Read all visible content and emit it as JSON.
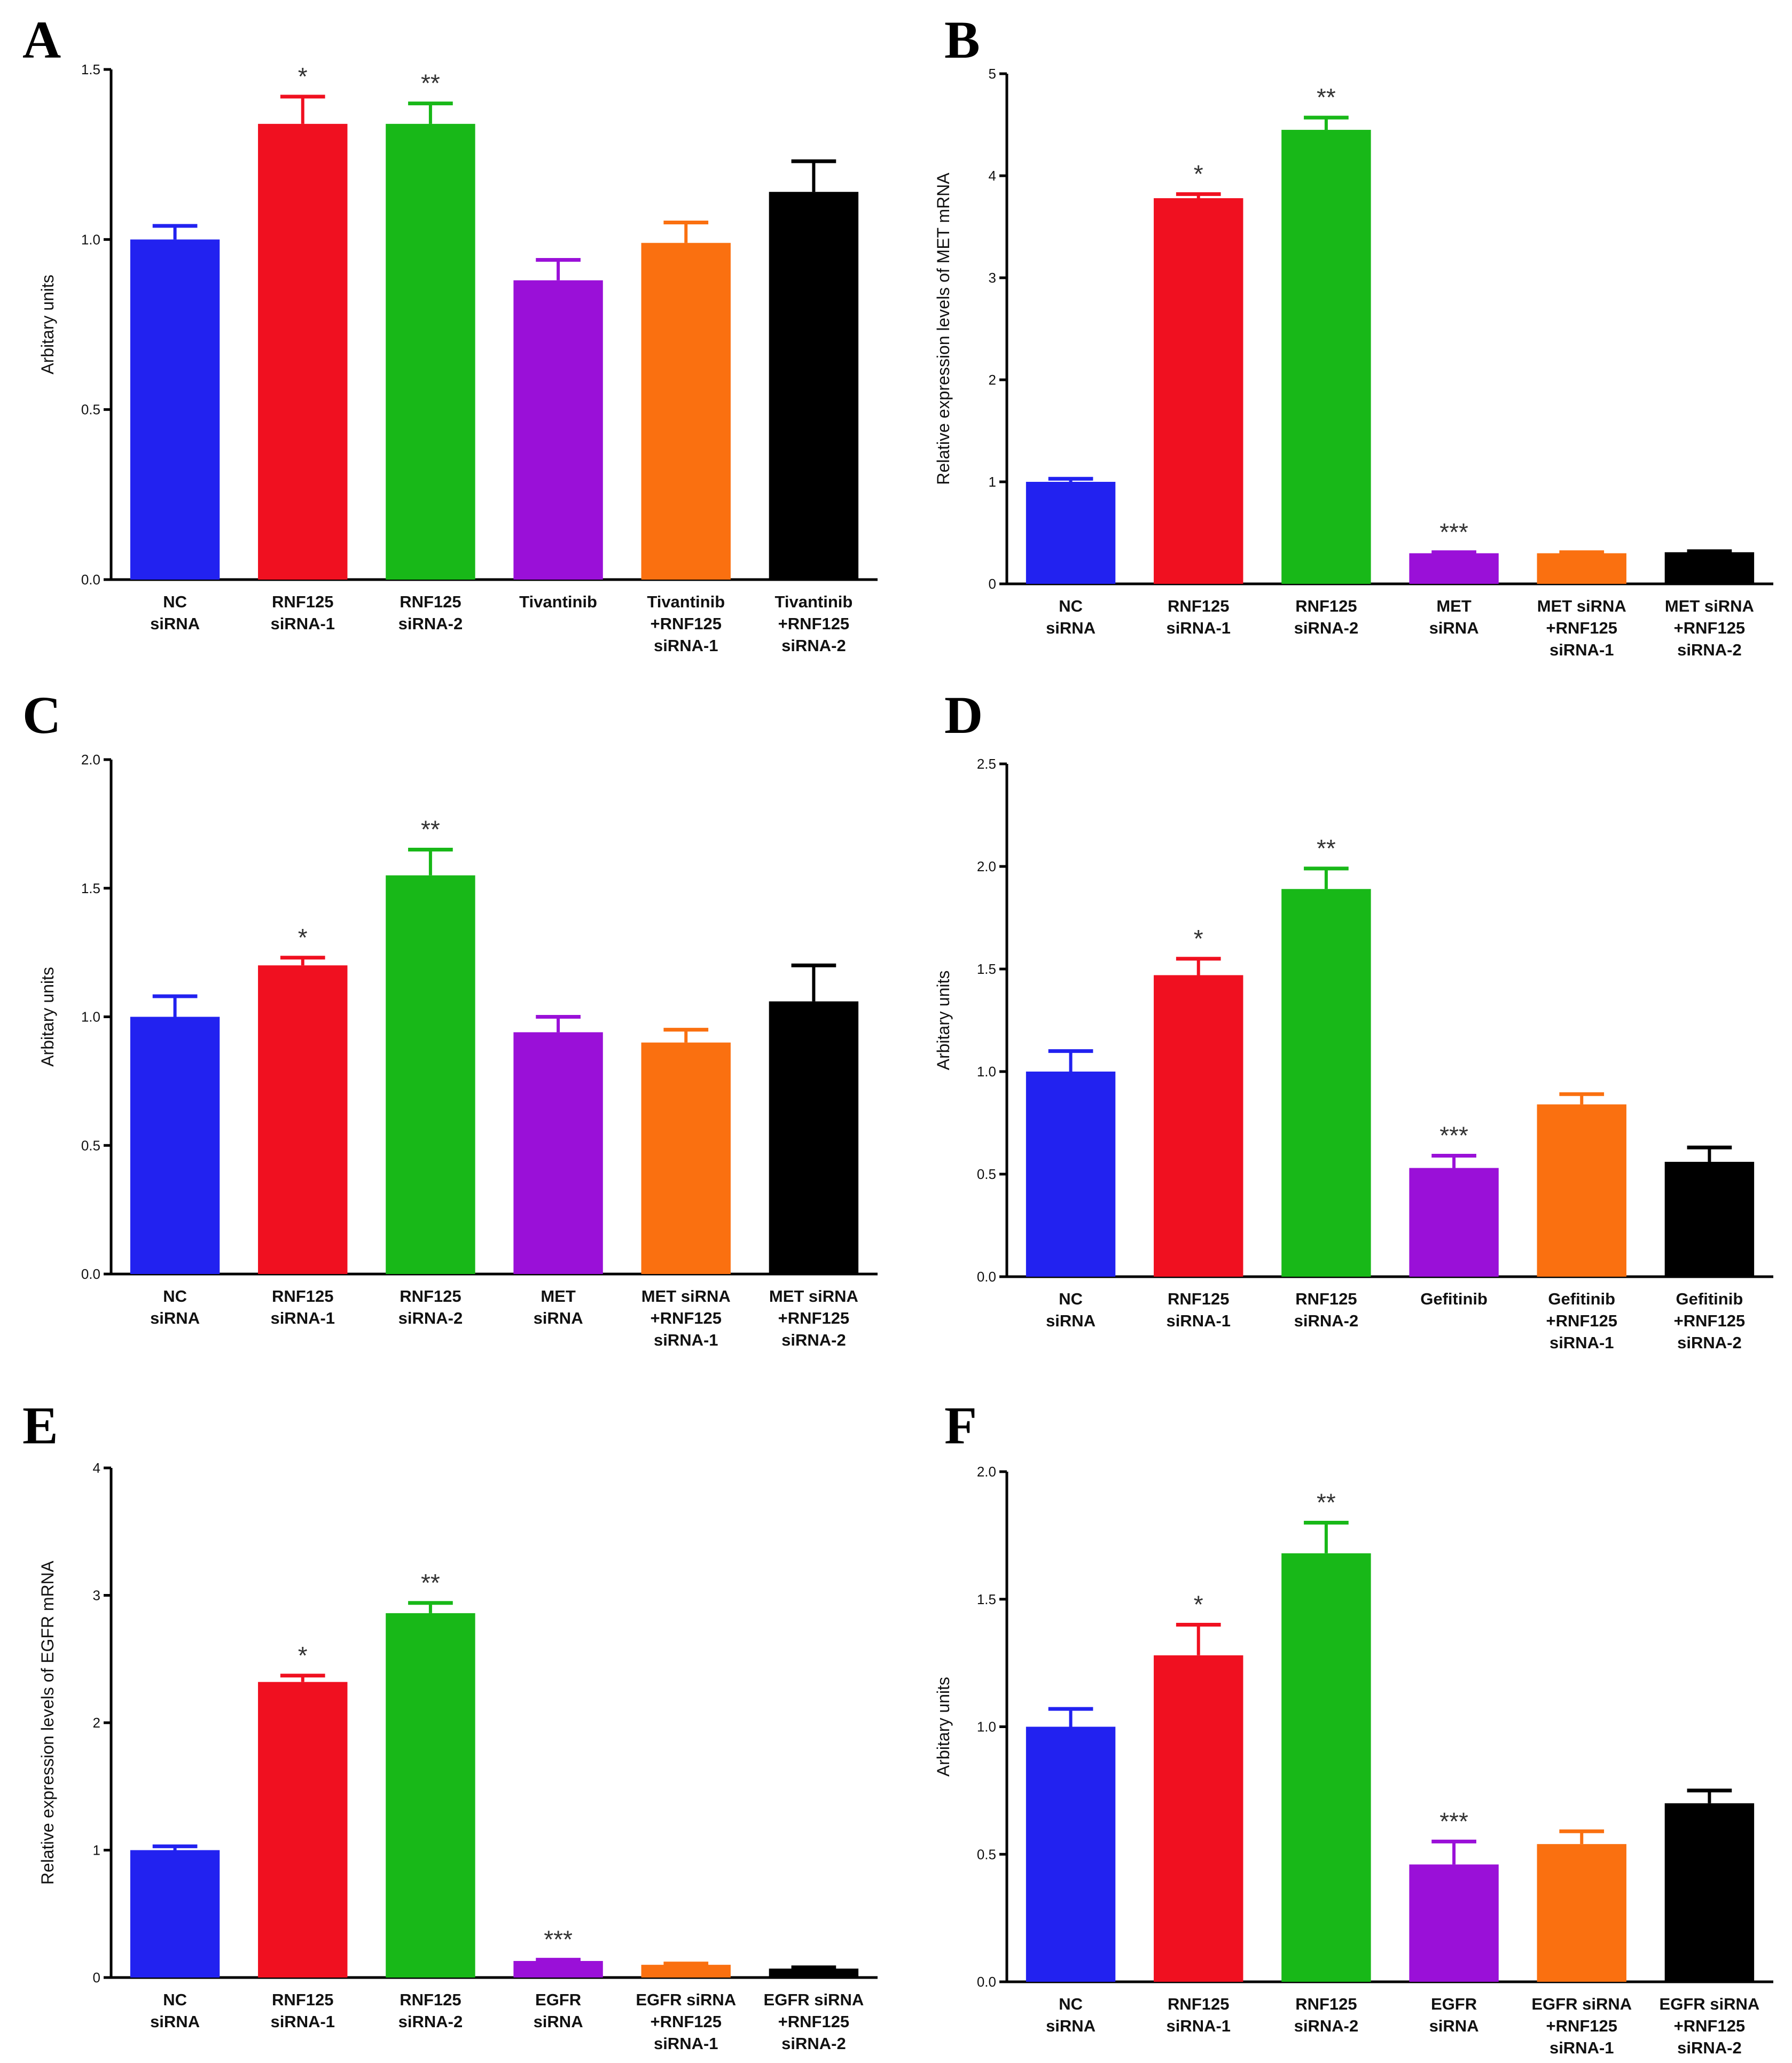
{
  "figure": {
    "panel_count": 6
  },
  "chart_data": [
    {
      "panel": "A",
      "type": "bar",
      "ylabel": "Arbitary units",
      "ylim": [
        0,
        1.5
      ],
      "yticks": [
        "0.0",
        "0.5",
        "1.0",
        "1.5"
      ],
      "categories": [
        [
          "NC",
          "siRNA"
        ],
        [
          "RNF125",
          "siRNA-1"
        ],
        [
          "RNF125",
          "siRNA-2"
        ],
        [
          "Tivantinib"
        ],
        [
          "Tivantinib",
          "+RNF125",
          "siRNA-1"
        ],
        [
          "Tivantinib",
          "+RNF125",
          "siRNA-2"
        ]
      ],
      "values": [
        1.0,
        1.34,
        1.34,
        0.88,
        0.99,
        1.14
      ],
      "errors": [
        0.04,
        0.08,
        0.06,
        0.06,
        0.06,
        0.09
      ],
      "significance": [
        "",
        "*",
        "**",
        "",
        "",
        ""
      ],
      "colors": [
        "#2222f0",
        "#f01020",
        "#18b818",
        "#9a10d8",
        "#fa7010",
        "#000000"
      ]
    },
    {
      "panel": "B",
      "type": "bar",
      "ylabel": "Relative expression levels of MET mRNA",
      "ylim": [
        0,
        5
      ],
      "yticks": [
        "0",
        "1",
        "2",
        "3",
        "4",
        "5"
      ],
      "categories": [
        [
          "NC",
          "siRNA"
        ],
        [
          "RNF125",
          "siRNA-1"
        ],
        [
          "RNF125",
          "siRNA-2"
        ],
        [
          "MET",
          "siRNA"
        ],
        [
          "MET siRNA",
          "+RNF125",
          "siRNA-1"
        ],
        [
          "MET siRNA",
          "+RNF125",
          "siRNA-2"
        ]
      ],
      "values": [
        1.0,
        3.78,
        4.45,
        0.3,
        0.3,
        0.31
      ],
      "errors": [
        0.03,
        0.04,
        0.12,
        0.01,
        0.01,
        0.01
      ],
      "significance": [
        "",
        "*",
        "**",
        "***",
        "",
        ""
      ],
      "colors": [
        "#2222f0",
        "#f01020",
        "#18b818",
        "#9a10d8",
        "#fa7010",
        "#000000"
      ]
    },
    {
      "panel": "C",
      "type": "bar",
      "ylabel": "Arbitary units",
      "ylim": [
        0,
        2.0
      ],
      "yticks": [
        "0.0",
        "0.5",
        "1.0",
        "1.5",
        "2.0"
      ],
      "categories": [
        [
          "NC",
          "siRNA"
        ],
        [
          "RNF125",
          "siRNA-1"
        ],
        [
          "RNF125",
          "siRNA-2"
        ],
        [
          "MET",
          "siRNA"
        ],
        [
          "MET siRNA",
          "+RNF125",
          "siRNA-1"
        ],
        [
          "MET siRNA",
          "+RNF125",
          "siRNA-2"
        ]
      ],
      "values": [
        1.0,
        1.2,
        1.55,
        0.94,
        0.9,
        1.06
      ],
      "errors": [
        0.08,
        0.03,
        0.1,
        0.06,
        0.05,
        0.14
      ],
      "significance": [
        "",
        "*",
        "**",
        "",
        "",
        ""
      ],
      "colors": [
        "#2222f0",
        "#f01020",
        "#18b818",
        "#9a10d8",
        "#fa7010",
        "#000000"
      ]
    },
    {
      "panel": "D",
      "type": "bar",
      "ylabel": "Arbitary units",
      "ylim": [
        0,
        2.5
      ],
      "yticks": [
        "0.0",
        "0.5",
        "1.0",
        "1.5",
        "2.0",
        "2.5"
      ],
      "categories": [
        [
          "NC",
          "siRNA"
        ],
        [
          "RNF125",
          "siRNA-1"
        ],
        [
          "RNF125",
          "siRNA-2"
        ],
        [
          "Gefitinib"
        ],
        [
          "Gefitinib",
          "+RNF125",
          "siRNA-1"
        ],
        [
          "Gefitinib",
          "+RNF125",
          "siRNA-2"
        ]
      ],
      "values": [
        1.0,
        1.47,
        1.89,
        0.53,
        0.84,
        0.56
      ],
      "errors": [
        0.1,
        0.08,
        0.1,
        0.06,
        0.05,
        0.07
      ],
      "significance": [
        "",
        "*",
        "**",
        "***",
        "",
        ""
      ],
      "colors": [
        "#2222f0",
        "#f01020",
        "#18b818",
        "#9a10d8",
        "#fa7010",
        "#000000"
      ]
    },
    {
      "panel": "E",
      "type": "bar",
      "ylabel": "Relative expression levels of EGFR mRNA",
      "ylim": [
        0,
        4
      ],
      "yticks": [
        "0",
        "1",
        "2",
        "3",
        "4"
      ],
      "categories": [
        [
          "NC",
          "siRNA"
        ],
        [
          "RNF125",
          "siRNA-1"
        ],
        [
          "RNF125",
          "siRNA-2"
        ],
        [
          "EGFR",
          "siRNA"
        ],
        [
          "EGFR siRNA",
          "+RNF125",
          "siRNA-1"
        ],
        [
          "EGFR siRNA",
          "+RNF125",
          "siRNA-2"
        ]
      ],
      "values": [
        1.0,
        2.32,
        2.86,
        0.13,
        0.1,
        0.07
      ],
      "errors": [
        0.03,
        0.05,
        0.08,
        0.01,
        0.01,
        0.01
      ],
      "significance": [
        "",
        "*",
        "**",
        "***",
        "",
        ""
      ],
      "colors": [
        "#2222f0",
        "#f01020",
        "#18b818",
        "#9a10d8",
        "#fa7010",
        "#000000"
      ]
    },
    {
      "panel": "F",
      "type": "bar",
      "ylabel": "Arbitary units",
      "ylim": [
        0,
        2.0
      ],
      "yticks": [
        "0.0",
        "0.5",
        "1.0",
        "1.5",
        "2.0"
      ],
      "categories": [
        [
          "NC",
          "siRNA"
        ],
        [
          "RNF125",
          "siRNA-1"
        ],
        [
          "RNF125",
          "siRNA-2"
        ],
        [
          "EGFR",
          "siRNA"
        ],
        [
          "EGFR siRNA",
          "+RNF125",
          "siRNA-1"
        ],
        [
          "EGFR siRNA",
          "+RNF125",
          "siRNA-2"
        ]
      ],
      "values": [
        1.0,
        1.28,
        1.68,
        0.46,
        0.54,
        0.7
      ],
      "errors": [
        0.07,
        0.12,
        0.12,
        0.09,
        0.05,
        0.05
      ],
      "significance": [
        "",
        "*",
        "**",
        "***",
        "",
        ""
      ],
      "colors": [
        "#2222f0",
        "#f01020",
        "#18b818",
        "#9a10d8",
        "#fa7010",
        "#000000"
      ]
    }
  ]
}
